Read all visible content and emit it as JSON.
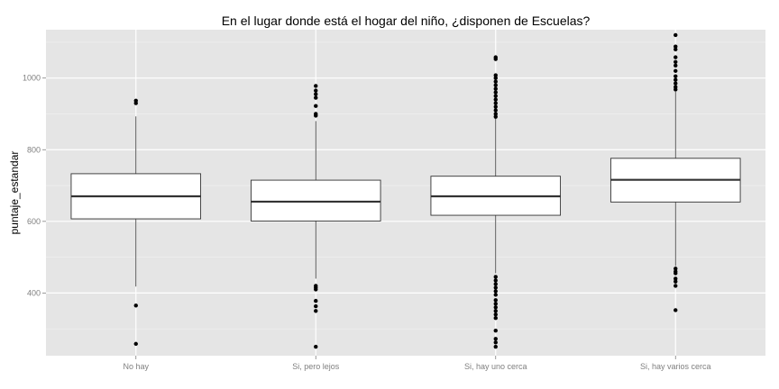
{
  "chart_data": {
    "type": "boxplot",
    "title": "En el lugar donde está el hogar del niño, ¿disponen de Escuelas?",
    "xlabel": "",
    "ylabel": "puntaje_estandar",
    "ylim": [
      225,
      1135
    ],
    "yticks": [
      400,
      600,
      800,
      1000
    ],
    "grid": true,
    "categories": [
      "No hay",
      "Si, pero lejos",
      "Si, hay uno cerca",
      "Si, hay varios cerca"
    ],
    "boxes": [
      {
        "category": "No hay",
        "whisker_low": 418,
        "q1": 607,
        "median": 670,
        "q3": 733,
        "whisker_high": 893,
        "outliers": [
          258,
          365,
          930,
          937
        ]
      },
      {
        "category": "Si, pero lejos",
        "whisker_low": 440,
        "q1": 601,
        "median": 655,
        "q3": 715,
        "whisker_high": 880,
        "outliers": [
          250,
          350,
          363,
          378,
          410,
          415,
          420,
          895,
          900,
          922,
          945,
          955,
          965,
          978
        ]
      },
      {
        "category": "Si, hay uno cerca",
        "whisker_low": 455,
        "q1": 617,
        "median": 670,
        "q3": 726,
        "whisker_high": 888,
        "outliers": [
          250,
          262,
          272,
          295,
          330,
          340,
          350,
          360,
          370,
          380,
          395,
          405,
          415,
          425,
          435,
          445,
          892,
          900,
          910,
          920,
          930,
          940,
          950,
          960,
          970,
          980,
          990,
          1000,
          1008,
          1053,
          1058
        ]
      },
      {
        "category": "Si, hay varios cerca",
        "whisker_low": 475,
        "q1": 654,
        "median": 716,
        "q3": 776,
        "whisker_high": 962,
        "outliers": [
          352,
          420,
          432,
          440,
          455,
          460,
          468,
          968,
          975,
          985,
          995,
          1005,
          1020,
          1035,
          1045,
          1058,
          1080,
          1088,
          1120
        ]
      }
    ],
    "colors": {
      "panel": "#e5e5e5",
      "grid_major": "#ffffff",
      "grid_minor": "#f2f2f2",
      "box_fill": "#ffffff",
      "box_stroke": "#333333",
      "median": "#333333",
      "outlier": "#000000",
      "tick_text": "#7f7f7f"
    }
  }
}
